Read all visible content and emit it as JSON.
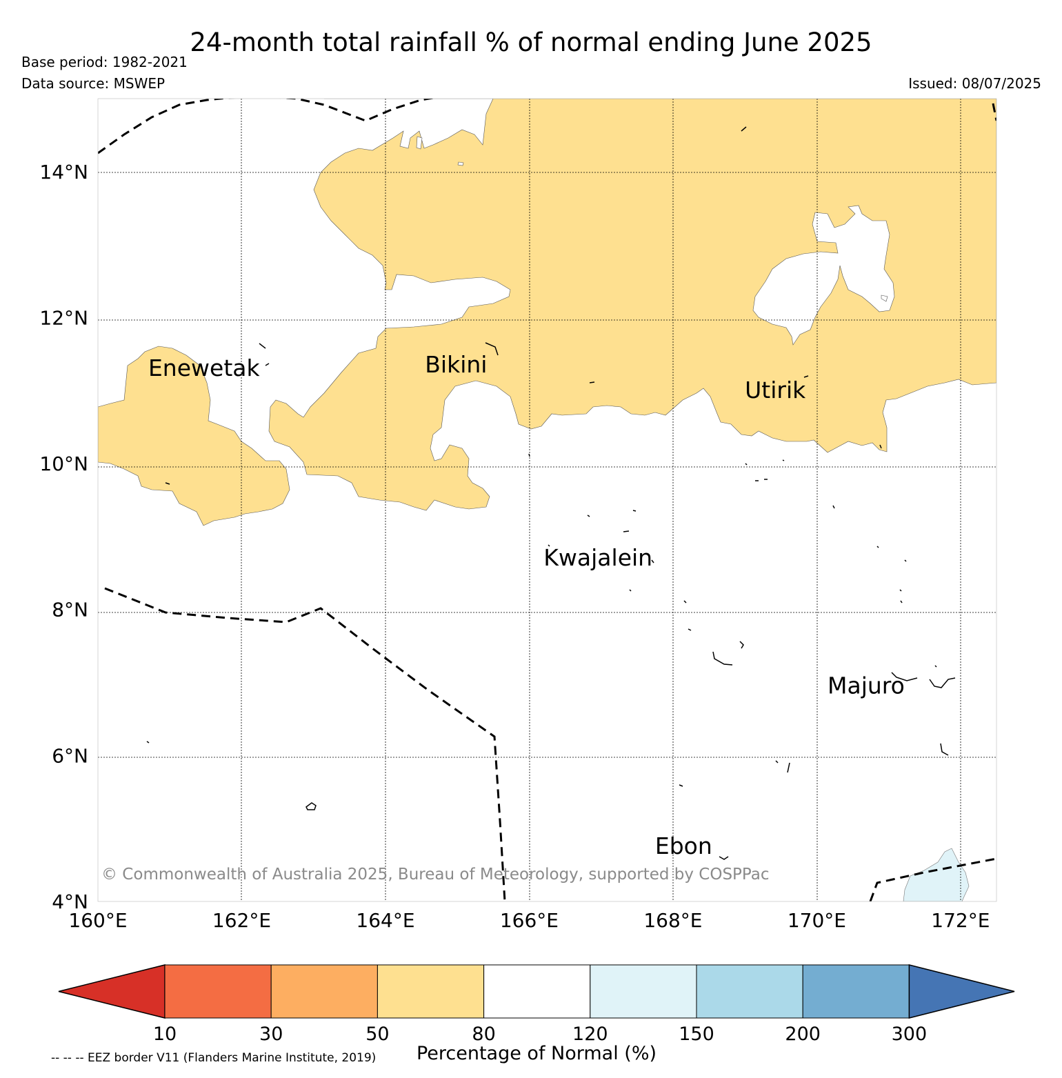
{
  "header": {
    "title": "24-month total rainfall % of normal ending June 2025",
    "base_period": "Base period: 1982-2021",
    "data_source": "Data source: MSWEP",
    "issued": "Issued: 08/07/2025"
  },
  "map": {
    "extent": {
      "lon": [
        160,
        172.5
      ],
      "lat": [
        4,
        15
      ]
    },
    "lon_ticks": [
      {
        "value": 160,
        "label": "160°E"
      },
      {
        "value": 162,
        "label": "162°E"
      },
      {
        "value": 164,
        "label": "164°E"
      },
      {
        "value": 166,
        "label": "166°E"
      },
      {
        "value": 168,
        "label": "168°E"
      },
      {
        "value": 170,
        "label": "170°E"
      },
      {
        "value": 172,
        "label": "172°E"
      }
    ],
    "lat_ticks": [
      {
        "value": 4,
        "label": "4°N"
      },
      {
        "value": 6,
        "label": "6°N"
      },
      {
        "value": 8,
        "label": "8°N"
      },
      {
        "value": 10,
        "label": "10°N"
      },
      {
        "value": 12,
        "label": "12°N"
      },
      {
        "value": 14,
        "label": "14°N"
      }
    ],
    "places": [
      {
        "name": "Enewetak",
        "lon": 160.7,
        "lat": 11.2
      },
      {
        "name": "Bikini",
        "lon": 164.55,
        "lat": 11.25
      },
      {
        "name": "Utirik",
        "lon": 169.0,
        "lat": 10.9
      },
      {
        "name": "Kwajalein",
        "lon": 166.2,
        "lat": 8.6
      },
      {
        "name": "Majuro",
        "lon": 170.15,
        "lat": 6.85
      },
      {
        "name": "Ebon",
        "lon": 167.75,
        "lat": 4.65
      }
    ],
    "copyright": "© Commonwealth of Australia 2025, Bureau of Meteorology, supported by COSPPac",
    "colors": {
      "category_50_80": "#fee090",
      "category_120_150": "#e0f3f8",
      "gridline": "#000000"
    }
  },
  "colorbar": {
    "title": "Percentage of Normal (%)",
    "boundaries": [
      "10",
      "30",
      "50",
      "80",
      "120",
      "150",
      "200",
      "300"
    ],
    "colors": [
      "#d73027",
      "#f46d43",
      "#fdae61",
      "#fee090",
      "#ffffff",
      "#e0f3f8",
      "#abd9e9",
      "#74add1",
      "#4575b4"
    ]
  },
  "footnote": "-- -- -- EEZ border V11 (Flanders Marine Institute, 2019)"
}
